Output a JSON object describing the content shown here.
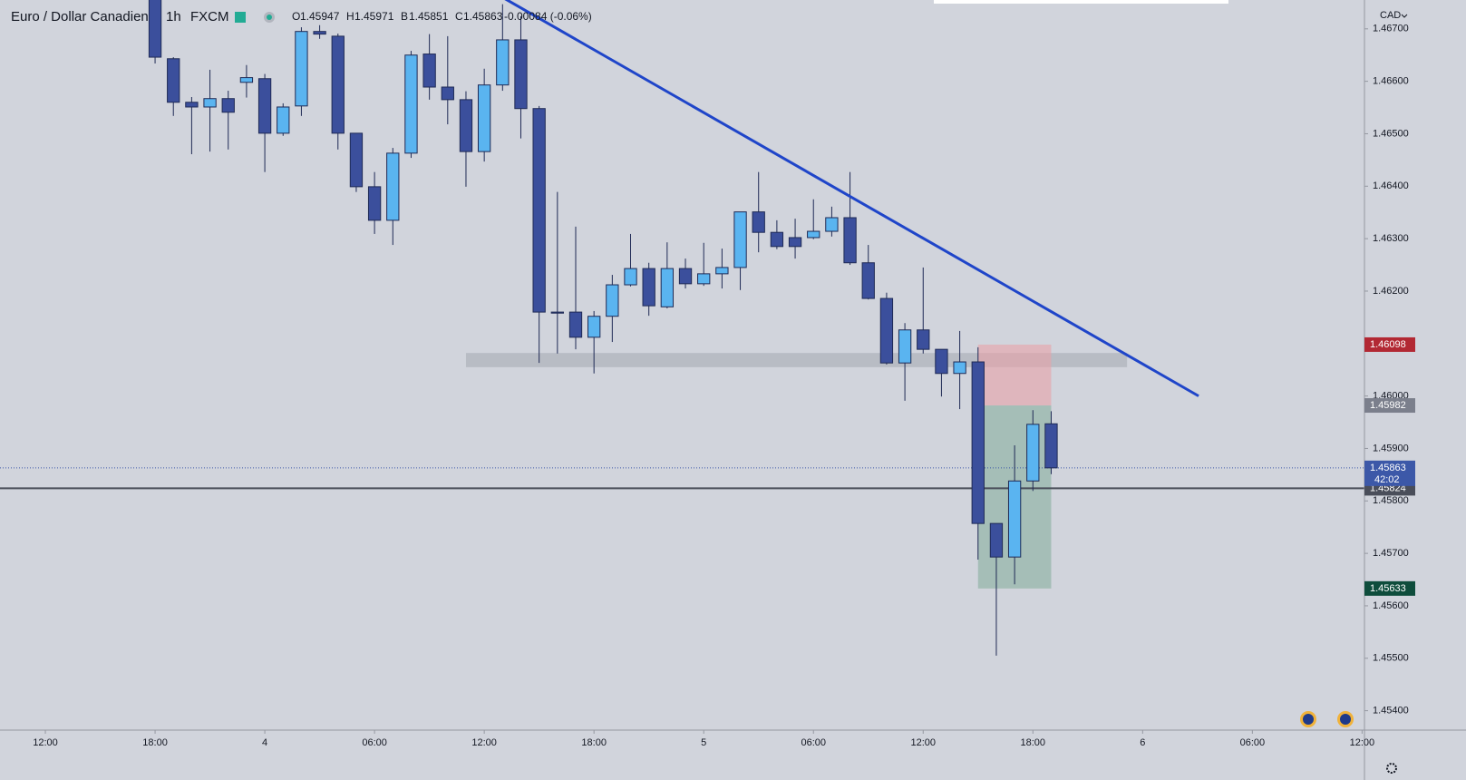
{
  "chart_data": {
    "type": "candlestick",
    "symbol": "Euro / Dollar Canadien",
    "interval": "1h",
    "exchange": "FXCM",
    "legend": [
      {
        "label": "O",
        "value": 1.45947
      },
      {
        "label": "H",
        "value": 1.45971
      },
      {
        "label": "B",
        "value": 1.45851
      },
      {
        "label": "C",
        "value": 1.45863
      }
    ],
    "change": "-0.00084 (-0.06%)",
    "currency": "CAD",
    "up_color": "#5ab4f0",
    "down_color": "#3b4f9c",
    "x": [
      6,
      7,
      8,
      9,
      10,
      11,
      12,
      13,
      14,
      15,
      16,
      17,
      18,
      19,
      20,
      21,
      22,
      23,
      24,
      25,
      26,
      27,
      28,
      29,
      30,
      31,
      32,
      33,
      34,
      35,
      36,
      37,
      38,
      39,
      40,
      41,
      42,
      43,
      44,
      45,
      46,
      47,
      48,
      49,
      50,
      51,
      52,
      53,
      54,
      55
    ],
    "open": [
      1.4677,
      1.46643,
      1.4656,
      1.46551,
      1.46567,
      1.46598,
      1.46605,
      1.46501,
      1.46553,
      1.46695,
      1.46686,
      1.46501,
      1.46399,
      1.46335,
      1.46463,
      1.46652,
      1.46589,
      1.46565,
      1.46466,
      1.46593,
      1.46679,
      1.46548,
      1.4616,
      1.4616,
      1.46112,
      1.46152,
      1.46212,
      1.46243,
      1.4617,
      1.46243,
      1.46214,
      1.46233,
      1.46245,
      1.46351,
      1.46312,
      1.46302,
      1.46302,
      1.46314,
      1.4634,
      1.46254,
      1.46186,
      1.46063,
      1.46126,
      1.46089,
      1.46043,
      1.46065,
      1.45757,
      1.45693,
      1.45838,
      1.45947
    ],
    "high": [
      1.468,
      1.46646,
      1.4657,
      1.46622,
      1.46582,
      1.46631,
      1.46614,
      1.46558,
      1.46703,
      1.46707,
      1.46691,
      1.46501,
      1.46427,
      1.46473,
      1.46658,
      1.4669,
      1.46686,
      1.46581,
      1.46624,
      1.46747,
      1.46724,
      1.46553,
      1.46389,
      1.46323,
      1.46162,
      1.46231,
      1.46309,
      1.46254,
      1.46293,
      1.46262,
      1.46292,
      1.46281,
      1.46351,
      1.46427,
      1.46335,
      1.46338,
      1.46375,
      1.46361,
      1.46427,
      1.46288,
      1.46197,
      1.46139,
      1.46245,
      1.46089,
      1.46124,
      1.46093,
      1.45757,
      1.45906,
      1.45973,
      1.45971
    ],
    "low": [
      1.46634,
      1.46534,
      1.46461,
      1.46466,
      1.4647,
      1.46569,
      1.46427,
      1.46496,
      1.46534,
      1.46681,
      1.4647,
      1.46389,
      1.46309,
      1.46288,
      1.46454,
      1.46565,
      1.46518,
      1.46399,
      1.46447,
      1.46582,
      1.46491,
      1.46063,
      1.46081,
      1.46089,
      1.46043,
      1.46103,
      1.46209,
      1.46153,
      1.46167,
      1.46205,
      1.4621,
      1.46205,
      1.46202,
      1.46274,
      1.4628,
      1.46262,
      1.46299,
      1.46304,
      1.4625,
      1.46184,
      1.4606,
      1.45991,
      1.46081,
      1.45999,
      1.45975,
      1.45688,
      1.45505,
      1.45641,
      1.45819,
      1.45851
    ],
    "close": [
      1.46646,
      1.4656,
      1.46551,
      1.46567,
      1.46541,
      1.46607,
      1.46501,
      1.46551,
      1.46695,
      1.4669,
      1.46501,
      1.46399,
      1.46335,
      1.46463,
      1.4665,
      1.46589,
      1.46565,
      1.46466,
      1.46593,
      1.46679,
      1.46548,
      1.4616,
      1.46158,
      1.46112,
      1.46152,
      1.46212,
      1.46243,
      1.46172,
      1.46243,
      1.46214,
      1.46233,
      1.46245,
      1.46351,
      1.46312,
      1.46285,
      1.46285,
      1.46314,
      1.4634,
      1.46254,
      1.46186,
      1.46063,
      1.46126,
      1.46089,
      1.46043,
      1.46065,
      1.45757,
      1.45693,
      1.45838,
      1.45946,
      1.45863
    ],
    "xlim": [
      -2.48,
      72.13
    ],
    "xticks": [
      {
        "value": 0,
        "label": "12:00"
      },
      {
        "value": 6,
        "label": "18:00"
      },
      {
        "value": 12,
        "label": "4"
      },
      {
        "value": 18,
        "label": "06:00"
      },
      {
        "value": 24,
        "label": "12:00"
      },
      {
        "value": 30,
        "label": "18:00"
      },
      {
        "value": 36,
        "label": "5"
      },
      {
        "value": 42,
        "label": "06:00"
      },
      {
        "value": 48,
        "label": "12:00"
      },
      {
        "value": 54,
        "label": "18:00"
      },
      {
        "value": 60,
        "label": "6"
      },
      {
        "value": 66,
        "label": "06:00"
      },
      {
        "value": 72,
        "label": "12:00"
      }
    ],
    "ylim": [
      1.45363,
      1.46755
    ],
    "yticks": [
      {
        "value": 1.454,
        "label": "1.45400"
      },
      {
        "value": 1.455,
        "label": "1.45500"
      },
      {
        "value": 1.456,
        "label": "1.45600"
      },
      {
        "value": 1.457,
        "label": "1.45700"
      },
      {
        "value": 1.458,
        "label": "1.45800"
      },
      {
        "value": 1.459,
        "label": "1.45900"
      },
      {
        "value": 1.46,
        "label": "1.46000"
      },
      {
        "value": 1.461,
        "label": "1.46100"
      },
      {
        "value": 1.462,
        "label": "1.46200"
      },
      {
        "value": 1.463,
        "label": "1.46300"
      },
      {
        "value": 1.464,
        "label": "1.46400"
      },
      {
        "value": 1.465,
        "label": "1.46500"
      },
      {
        "value": 1.466,
        "label": "1.46600"
      },
      {
        "value": 1.467,
        "label": "1.46700"
      }
    ],
    "trendline": {
      "x": [
        25,
        63.06
      ],
      "y": [
        1.4676,
        1.46
      ],
      "color": "#1f45c9"
    },
    "zone": {
      "x": [
        23,
        59.15
      ],
      "y": [
        1.46055,
        1.46082
      ]
    },
    "position": {
      "x": [
        51,
        55
      ],
      "stop": 1.46098,
      "entry": 1.45982,
      "target": 1.45633
    },
    "last_price": {
      "value": 1.45863,
      "countdown": "42:02"
    },
    "level": 1.45824
  }
}
